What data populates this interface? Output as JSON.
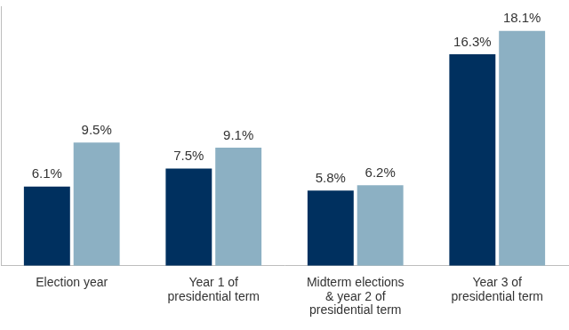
{
  "chart_data": {
    "type": "bar",
    "categories": [
      "Election year",
      "Year 1 of\npresidential term",
      "Midterm elections\n& year 2 of\npresidential term",
      "Year 3 of\npresidential term"
    ],
    "series": [
      {
        "color": "#00305f",
        "values": [
          6.1,
          7.5,
          5.8,
          16.3
        ],
        "value_labels": [
          "6.1%",
          "7.5%",
          "5.8%",
          "16.3%"
        ]
      },
      {
        "color": "#8cb0c3",
        "values": [
          9.5,
          9.1,
          6.2,
          18.1
        ],
        "value_labels": [
          "9.5%",
          "9.1%",
          "6.2%",
          "18.1%"
        ]
      }
    ],
    "ylim": [
      0,
      20
    ],
    "grid": false,
    "data_labels": true,
    "tick_labels": "x"
  }
}
